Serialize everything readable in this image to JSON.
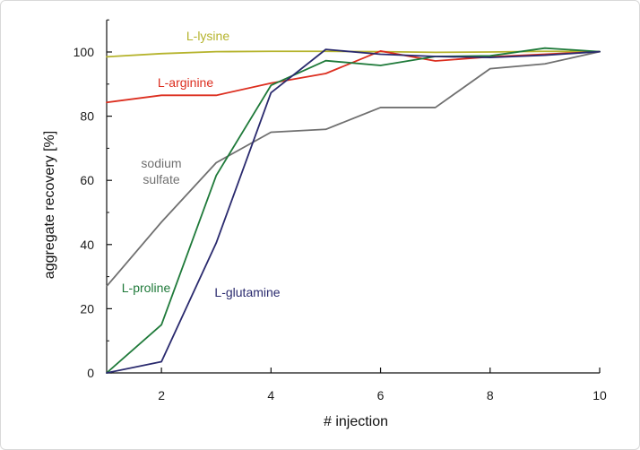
{
  "chart_data": {
    "type": "line",
    "title": "",
    "xlabel": "# injection",
    "ylabel": "aggregate recovery [%]",
    "xlim": [
      1,
      10
    ],
    "ylim": [
      0,
      110
    ],
    "xticks": [
      2,
      4,
      6,
      8,
      10
    ],
    "yticks": [
      0,
      20,
      40,
      60,
      80,
      100
    ],
    "x": [
      1,
      2,
      3,
      4,
      5,
      6,
      7,
      8,
      9,
      10
    ],
    "series": [
      {
        "name": "L-lysine",
        "color": "#b5b32c",
        "label_lines": [
          "L-lysine"
        ],
        "values": [
          98.5,
          99.5,
          100.1,
          100.2,
          100.2,
          100.1,
          99.9,
          100.0,
          100.2,
          100.1
        ]
      },
      {
        "name": "L-arginine",
        "color": "#dc2e1f",
        "label_lines": [
          "L-arginine"
        ],
        "values": [
          84.3,
          86.5,
          86.5,
          90.3,
          93.3,
          100.3,
          97.2,
          98.5,
          99.3,
          100.1
        ]
      },
      {
        "name": "sodium sulfate",
        "color": "#707070",
        "label_lines": [
          "sodium",
          "sulfate"
        ],
        "values": [
          27.0,
          47.0,
          65.5,
          75.0,
          75.9,
          82.7,
          82.7,
          94.8,
          96.3,
          100.1
        ]
      },
      {
        "name": "L-proline",
        "color": "#1f7a3a",
        "label_lines": [
          "L-proline"
        ],
        "values": [
          0.0,
          15.0,
          61.5,
          89.6,
          97.3,
          95.8,
          98.6,
          98.8,
          101.2,
          100.1
        ]
      },
      {
        "name": "L-glutamine",
        "color": "#2a2a6e",
        "label_lines": [
          "L-glutamine"
        ],
        "values": [
          0.0,
          3.5,
          40.5,
          87.3,
          100.8,
          99.3,
          98.6,
          98.3,
          99.0,
          100.1
        ]
      }
    ]
  }
}
